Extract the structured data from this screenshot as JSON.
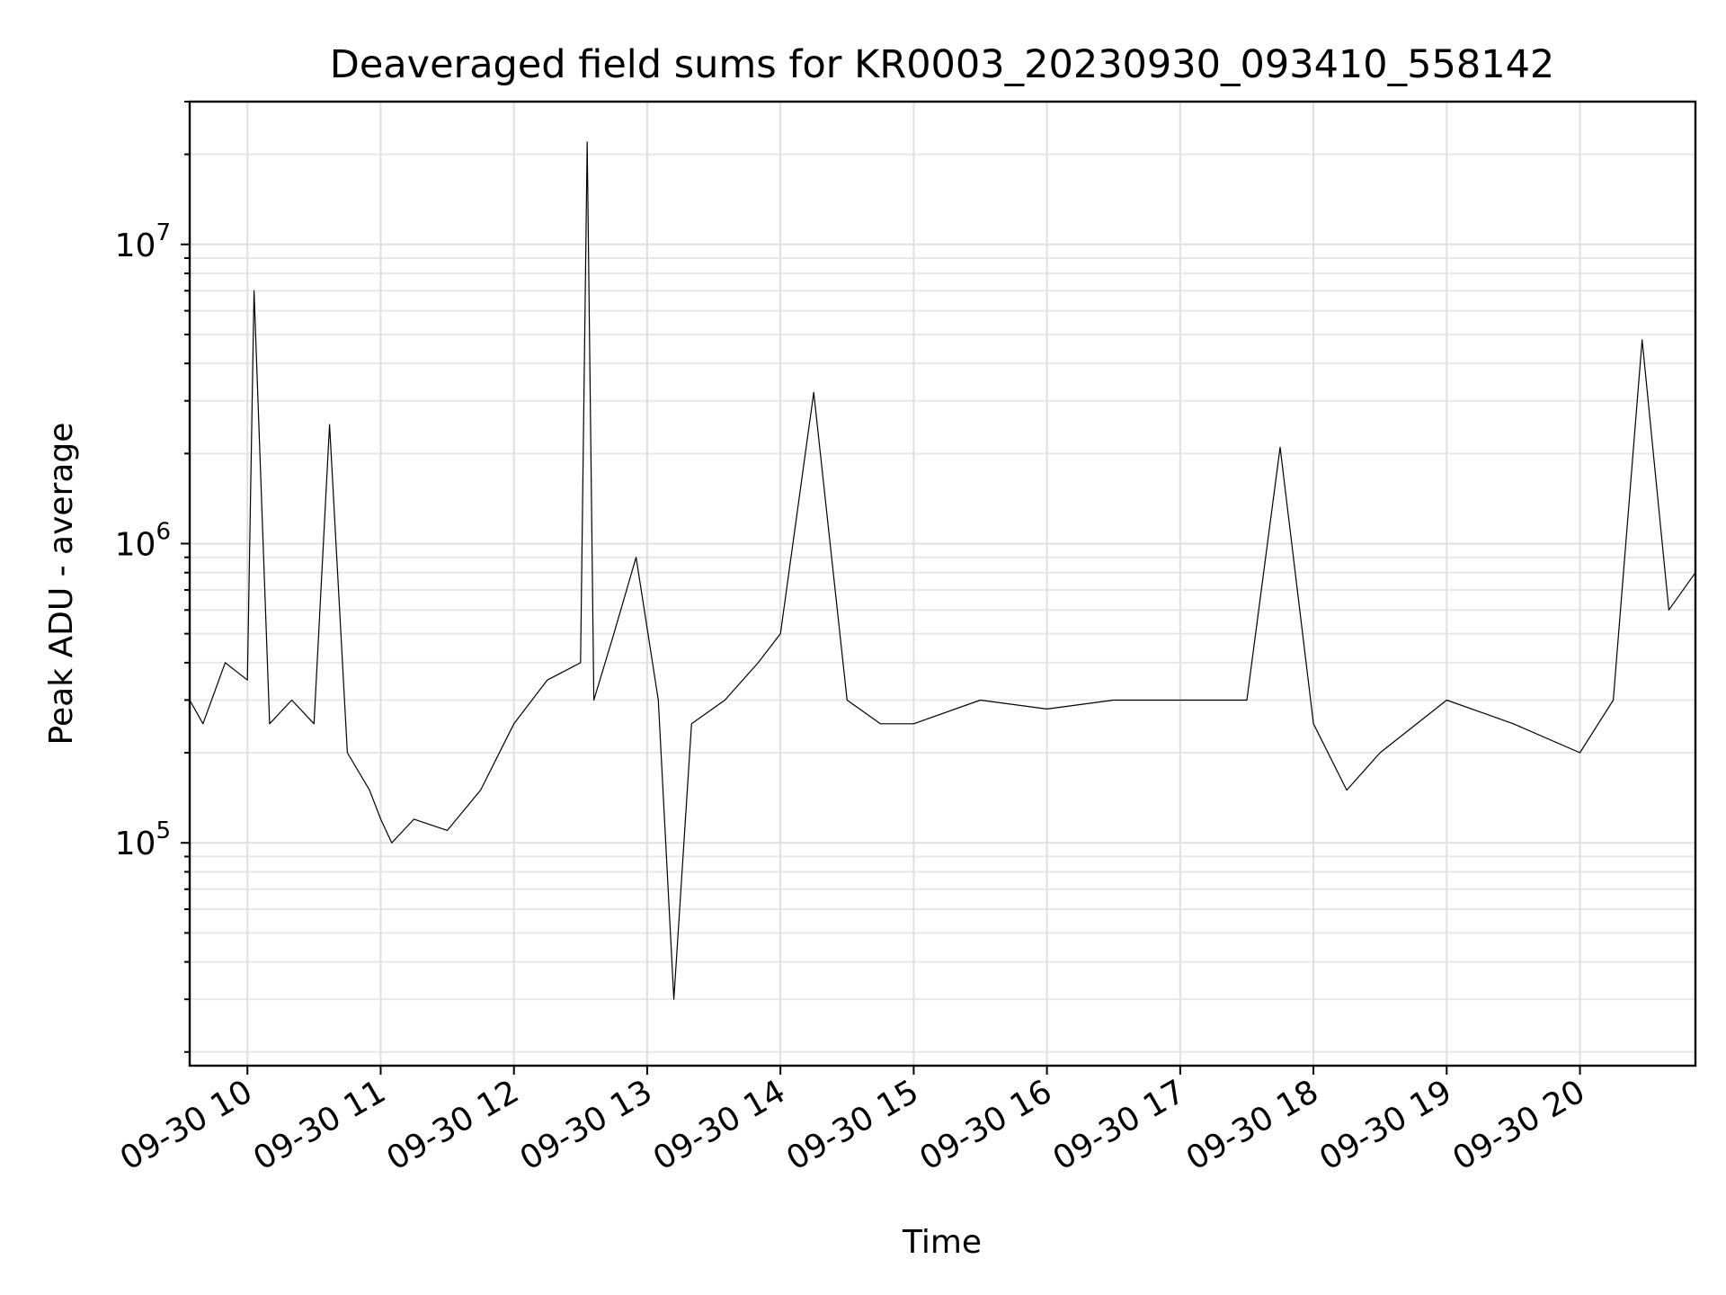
{
  "chart_data": {
    "type": "line",
    "title": "Deaveraged field sums for KR0003_20230930_093410_558142",
    "xlabel": "Time",
    "ylabel": "Peak ADU - average",
    "y_scale": "log",
    "ylim": [
      18000,
      30000000
    ],
    "xlim": [
      "2023-09-30 09:34",
      "2023-09-30 20:52"
    ],
    "grid": true,
    "x_tick_labels": [
      "09-30 10",
      "09-30 11",
      "09-30 12",
      "09-30 13",
      "09-30 14",
      "09-30 15",
      "09-30 16",
      "09-30 17",
      "09-30 18",
      "09-30 19",
      "09-30 20"
    ],
    "x_tick_times": [
      "2023-09-30 10:00",
      "2023-09-30 11:00",
      "2023-09-30 12:00",
      "2023-09-30 13:00",
      "2023-09-30 14:00",
      "2023-09-30 15:00",
      "2023-09-30 16:00",
      "2023-09-30 17:00",
      "2023-09-30 18:00",
      "2023-09-30 19:00",
      "2023-09-30 20:00"
    ],
    "y_ticks": [
      {
        "base": "10",
        "exp": "5",
        "value": 100000
      },
      {
        "base": "10",
        "exp": "6",
        "value": 1000000
      },
      {
        "base": "10",
        "exp": "7",
        "value": 10000000
      }
    ],
    "line_color": "#000000",
    "series": [
      {
        "x": [
          "2023-09-30 09:34",
          "2023-09-30 09:40",
          "2023-09-30 09:50",
          "2023-09-30 10:00",
          "2023-09-30 10:03",
          "2023-09-30 10:10",
          "2023-09-30 10:20",
          "2023-09-30 10:30",
          "2023-09-30 10:37",
          "2023-09-30 10:45",
          "2023-09-30 10:55",
          "2023-09-30 11:00",
          "2023-09-30 11:05",
          "2023-09-30 11:15",
          "2023-09-30 11:30",
          "2023-09-30 11:45",
          "2023-09-30 12:00",
          "2023-09-30 12:15",
          "2023-09-30 12:30",
          "2023-09-30 12:33",
          "2023-09-30 12:36",
          "2023-09-30 12:45",
          "2023-09-30 12:55",
          "2023-09-30 13:05",
          "2023-09-30 13:12",
          "2023-09-30 13:20",
          "2023-09-30 13:35",
          "2023-09-30 13:50",
          "2023-09-30 14:00",
          "2023-09-30 14:15",
          "2023-09-30 14:30",
          "2023-09-30 14:45",
          "2023-09-30 15:00",
          "2023-09-30 15:30",
          "2023-09-30 16:00",
          "2023-09-30 16:30",
          "2023-09-30 17:00",
          "2023-09-30 17:30",
          "2023-09-30 17:45",
          "2023-09-30 18:00",
          "2023-09-30 18:15",
          "2023-09-30 18:30",
          "2023-09-30 19:00",
          "2023-09-30 19:30",
          "2023-09-30 20:00",
          "2023-09-30 20:15",
          "2023-09-30 20:28",
          "2023-09-30 20:40",
          "2023-09-30 20:52"
        ],
        "values": [
          300000,
          250000,
          400000,
          350000,
          7000000,
          250000,
          300000,
          250000,
          2500000,
          200000,
          150000,
          120000,
          100000,
          120000,
          110000,
          150000,
          250000,
          350000,
          400000,
          22000000,
          300000,
          500000,
          900000,
          300000,
          30000,
          250000,
          300000,
          400000,
          500000,
          3200000,
          300000,
          250000,
          250000,
          300000,
          280000,
          300000,
          300000,
          300000,
          2100000,
          250000,
          150000,
          200000,
          300000,
          250000,
          200000,
          300000,
          4800000,
          600000,
          800000
        ]
      }
    ]
  }
}
